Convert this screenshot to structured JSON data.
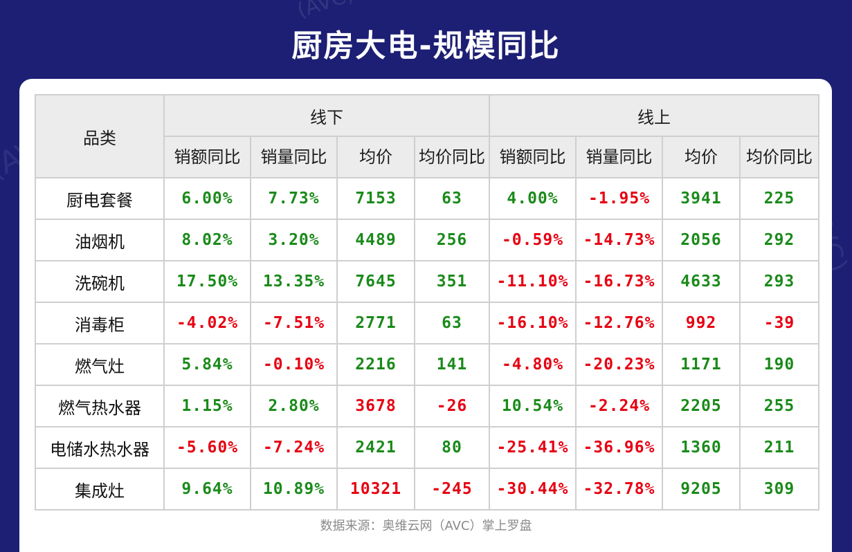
{
  "title": "厨房大电-规模同比",
  "watermark": "(AVC)",
  "colors": {
    "positive": "#1a8a1a",
    "negative": "#e60012",
    "background": "#1c1f73"
  },
  "chart_data": {
    "type": "table",
    "title": "厨房大电-规模同比",
    "row_header": "品类",
    "groups": [
      "线下",
      "线上"
    ],
    "columns": [
      "销额同比",
      "销量同比",
      "均价",
      "均价同比"
    ],
    "rows": [
      {
        "category": "厨电套餐",
        "offline": [
          "6.00%",
          "7.73%",
          "7153",
          "63"
        ],
        "online": [
          "4.00%",
          "-1.95%",
          "3941",
          "225"
        ]
      },
      {
        "category": "油烟机",
        "offline": [
          "8.02%",
          "3.20%",
          "4489",
          "256"
        ],
        "online": [
          "-0.59%",
          "-14.73%",
          "2056",
          "292"
        ]
      },
      {
        "category": "洗碗机",
        "offline": [
          "17.50%",
          "13.35%",
          "7645",
          "351"
        ],
        "online": [
          "-11.10%",
          "-16.73%",
          "4633",
          "293"
        ]
      },
      {
        "category": "消毒柜",
        "offline": [
          "-4.02%",
          "-7.51%",
          "2771",
          "63"
        ],
        "online": [
          "-16.10%",
          "-12.76%",
          "992",
          "-39"
        ]
      },
      {
        "category": "燃气灶",
        "offline": [
          "5.84%",
          "-0.10%",
          "2216",
          "141"
        ],
        "online": [
          "-4.80%",
          "-20.23%",
          "1171",
          "190"
        ]
      },
      {
        "category": "燃气热水器",
        "offline": [
          "1.15%",
          "2.80%",
          "3678",
          "-26"
        ],
        "online": [
          "10.54%",
          "-2.24%",
          "2205",
          "255"
        ]
      },
      {
        "category": "电储水热水器",
        "offline": [
          "-5.60%",
          "-7.24%",
          "2421",
          "80"
        ],
        "online": [
          "-25.41%",
          "-36.96%",
          "1360",
          "211"
        ]
      },
      {
        "category": "集成灶",
        "offline": [
          "9.64%",
          "10.89%",
          "10321",
          "-245"
        ],
        "online": [
          "-30.44%",
          "-32.78%",
          "9205",
          "309"
        ]
      }
    ],
    "cell_colors": [
      [
        "pos",
        "pos",
        "pos",
        "pos",
        "pos",
        "neg",
        "pos",
        "pos"
      ],
      [
        "pos",
        "pos",
        "pos",
        "pos",
        "neg",
        "neg",
        "pos",
        "pos"
      ],
      [
        "pos",
        "pos",
        "pos",
        "pos",
        "neg",
        "neg",
        "pos",
        "pos"
      ],
      [
        "neg",
        "neg",
        "pos",
        "pos",
        "neg",
        "neg",
        "neg",
        "neg"
      ],
      [
        "pos",
        "neg",
        "pos",
        "pos",
        "neg",
        "neg",
        "pos",
        "pos"
      ],
      [
        "pos",
        "pos",
        "neg",
        "neg",
        "pos",
        "neg",
        "pos",
        "pos"
      ],
      [
        "neg",
        "neg",
        "pos",
        "pos",
        "neg",
        "neg",
        "pos",
        "pos"
      ],
      [
        "pos",
        "pos",
        "neg",
        "neg",
        "neg",
        "neg",
        "pos",
        "pos"
      ]
    ]
  },
  "source": "数据来源：奥维云网（AVC）掌上罗盘"
}
